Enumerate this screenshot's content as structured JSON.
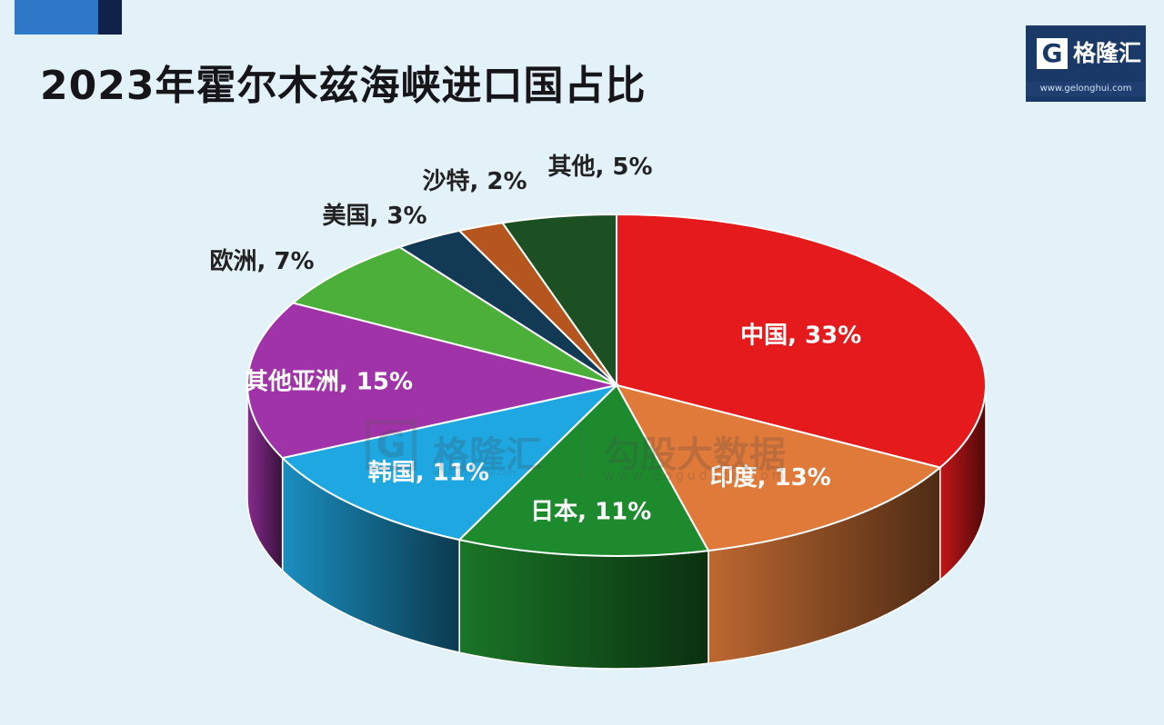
{
  "title": "2023年霍尔木兹海峡进口国占比",
  "logo": {
    "mark": "G",
    "name": "格隆汇",
    "url": "www.gelonghui.com"
  },
  "watermark": {
    "mark": "G",
    "name": "格隆汇",
    "sub": "www.gelonghui.com",
    "name2": "勾股大数据",
    "sub2": "www.gogudata.com"
  },
  "chart_data": {
    "type": "pie",
    "title": "2023年霍尔木兹海峡进口国占比",
    "style": "3d",
    "unit": "%",
    "slices": [
      {
        "label": "中国",
        "value": 33,
        "display": "中国, 33%",
        "color": "#e41a1c",
        "label_color": "#ffffff"
      },
      {
        "label": "印度",
        "value": 13,
        "display": "印度, 13%",
        "color": "#e07a3a",
        "label_color": "#ffffff"
      },
      {
        "label": "日本",
        "value": 11,
        "display": "日本, 11%",
        "color": "#1e8a2e",
        "label_color": "#ffffff"
      },
      {
        "label": "韩国",
        "value": 11,
        "display": "韩国, 11%",
        "color": "#1ea7e1",
        "label_color": "#ffffff"
      },
      {
        "label": "其他亚洲",
        "value": 15,
        "display": "其他亚洲, 15%",
        "color": "#a033a8",
        "label_color": "#ffffff"
      },
      {
        "label": "欧洲",
        "value": 7,
        "display": "欧洲, 7%",
        "color": "#4caf3a",
        "label_color": "#222222"
      },
      {
        "label": "美国",
        "value": 3,
        "display": "美国, 3%",
        "color": "#123a55",
        "label_color": "#222222"
      },
      {
        "label": "沙特",
        "value": 2,
        "display": "沙特, 2%",
        "color": "#b5561e",
        "label_color": "#222222"
      },
      {
        "label": "其他",
        "value": 5,
        "display": "其他, 5%",
        "color": "#1c4f22",
        "label_color": "#222222"
      }
    ]
  }
}
